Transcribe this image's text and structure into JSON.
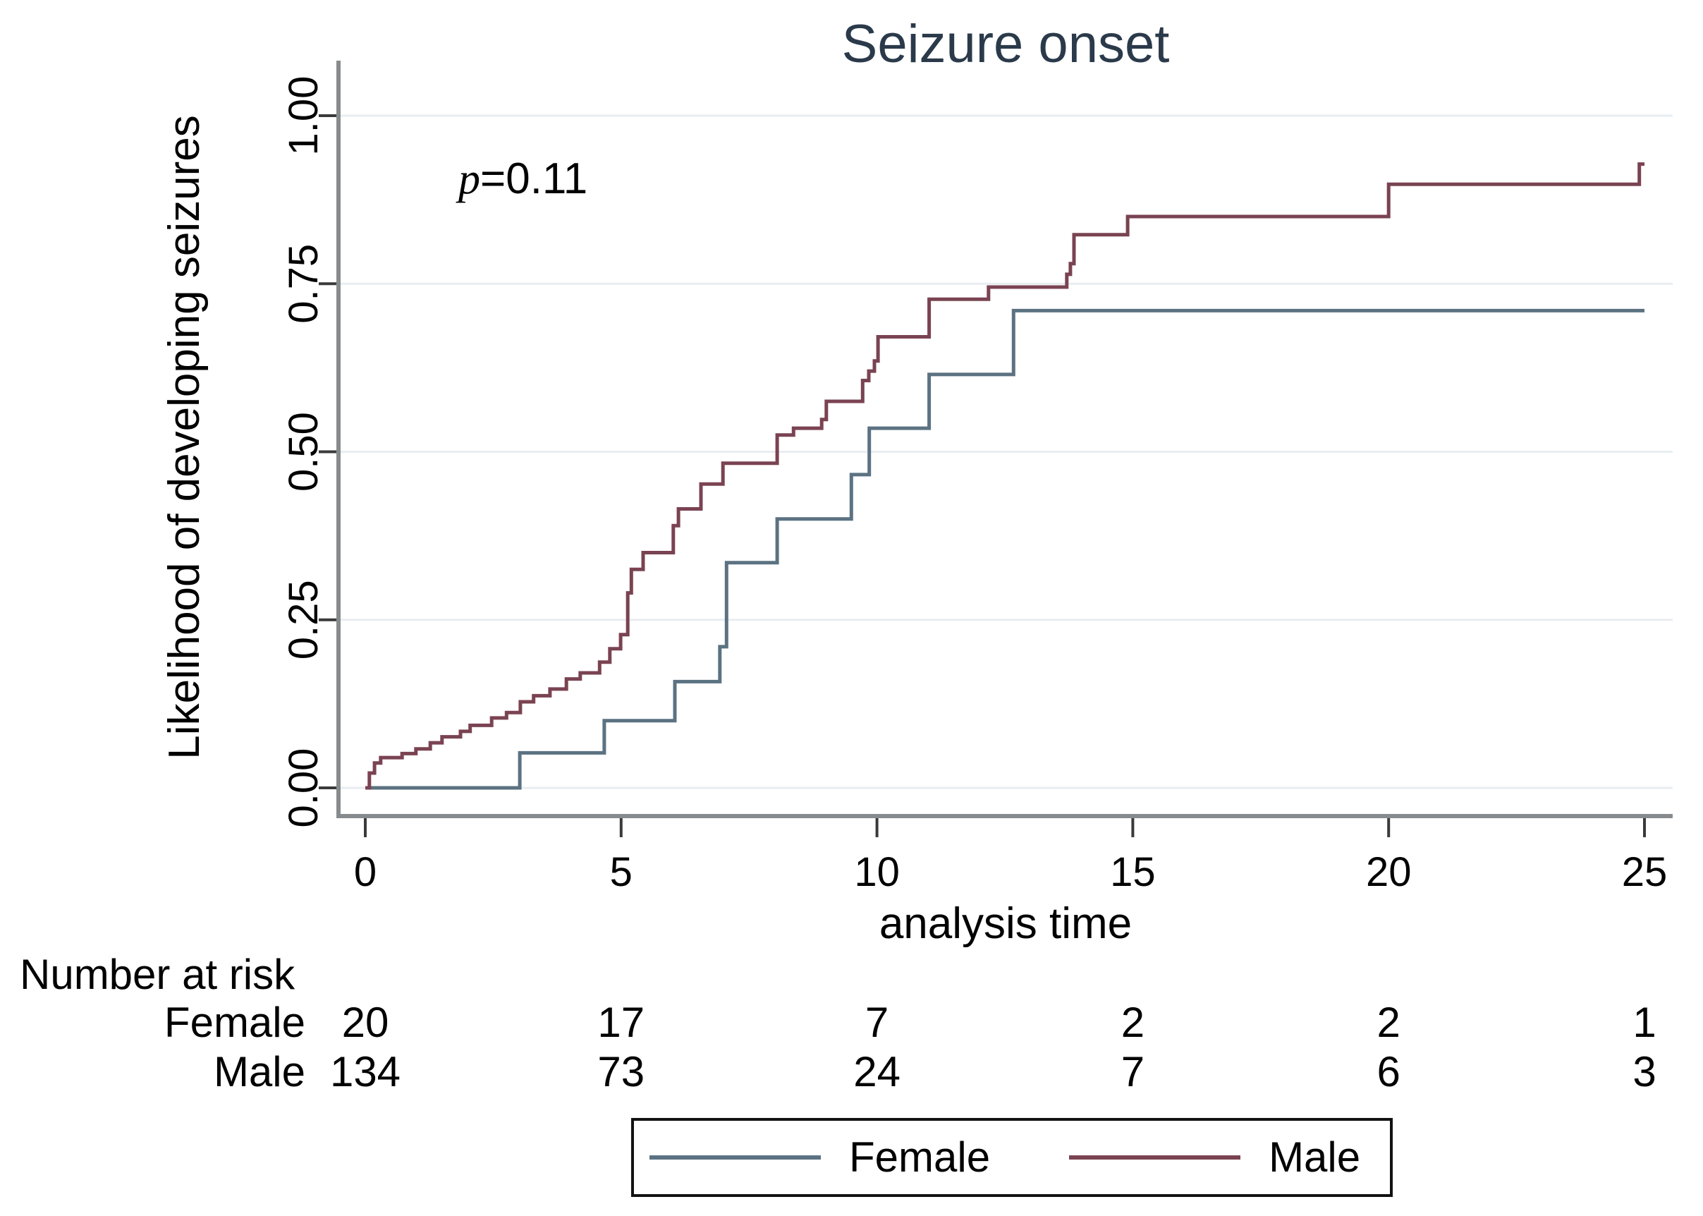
{
  "chart_data": {
    "type": "line",
    "subtype": "kaplan-meier-step",
    "title": "Seizure onset",
    "xlabel": "analysis time",
    "ylabel": "Likelihood of developing seizures",
    "xlim": [
      0,
      25
    ],
    "ylim": [
      0,
      1
    ],
    "xticks": [
      0,
      5,
      10,
      15,
      20,
      25
    ],
    "yticks": [
      "0.00",
      "0.25",
      "0.50",
      "0.75",
      "1.00"
    ],
    "ytick_values": [
      0,
      0.25,
      0.5,
      0.75,
      1.0
    ],
    "grid": "horizontal",
    "legend_position": "bottom",
    "annotation": "p=0.11",
    "series": [
      {
        "name": "Female",
        "color": "#5b7282",
        "points": [
          [
            0,
            0
          ],
          [
            3.02,
            0.052
          ],
          [
            4.67,
            0.1
          ],
          [
            6.05,
            0.158
          ],
          [
            6.93,
            0.21
          ],
          [
            7.06,
            0.335
          ],
          [
            8.05,
            0.4
          ],
          [
            9.5,
            0.466
          ],
          [
            9.85,
            0.535
          ],
          [
            11.02,
            0.615
          ],
          [
            12.67,
            0.71
          ]
        ]
      },
      {
        "name": "Male",
        "color": "#7a4352",
        "points": [
          [
            0,
            0
          ],
          [
            0.08,
            0.022
          ],
          [
            0.18,
            0.037
          ],
          [
            0.3,
            0.045
          ],
          [
            0.72,
            0.051
          ],
          [
            0.99,
            0.058
          ],
          [
            1.27,
            0.067
          ],
          [
            1.5,
            0.076
          ],
          [
            1.86,
            0.084
          ],
          [
            2.05,
            0.093
          ],
          [
            2.47,
            0.104
          ],
          [
            2.76,
            0.112
          ],
          [
            3.03,
            0.128
          ],
          [
            3.29,
            0.137
          ],
          [
            3.61,
            0.147
          ],
          [
            3.93,
            0.162
          ],
          [
            4.2,
            0.171
          ],
          [
            4.58,
            0.187
          ],
          [
            4.78,
            0.207
          ],
          [
            4.99,
            0.228
          ],
          [
            5.13,
            0.29
          ],
          [
            5.2,
            0.325
          ],
          [
            5.43,
            0.35
          ],
          [
            6.02,
            0.39
          ],
          [
            6.12,
            0.415
          ],
          [
            6.56,
            0.452
          ],
          [
            6.99,
            0.483
          ],
          [
            8.05,
            0.525
          ],
          [
            8.37,
            0.535
          ],
          [
            8.92,
            0.548
          ],
          [
            9.01,
            0.575
          ],
          [
            9.72,
            0.606
          ],
          [
            9.84,
            0.62
          ],
          [
            9.95,
            0.635
          ],
          [
            10.02,
            0.671
          ],
          [
            11.02,
            0.727
          ],
          [
            12.18,
            0.745
          ],
          [
            13.71,
            0.764
          ],
          [
            13.78,
            0.78
          ],
          [
            13.85,
            0.823
          ],
          [
            14.9,
            0.85
          ],
          [
            20.0,
            0.898
          ],
          [
            24.9,
            0.928
          ]
        ]
      }
    ]
  },
  "annotation": {
    "p_symbol": "p",
    "value": "=0.11"
  },
  "risk_table": {
    "title": "Number at risk",
    "times": [
      0,
      5,
      10,
      15,
      20,
      25
    ],
    "rows": [
      {
        "label": "Female",
        "values": [
          "20",
          "17",
          "7",
          "2",
          "2",
          "1"
        ]
      },
      {
        "label": "Male",
        "values": [
          "134",
          "73",
          "24",
          "7",
          "6",
          "3"
        ]
      }
    ]
  },
  "style_colors": {
    "title": "#2b3a4a",
    "axis_line": "#888b8d",
    "tick": "#3a3a3a",
    "grid": "#e9edf0",
    "text": "#000000"
  }
}
